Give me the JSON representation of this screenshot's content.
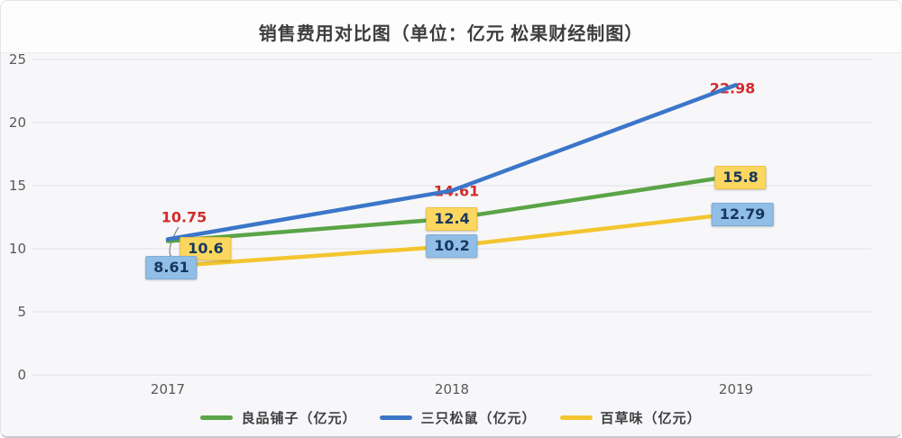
{
  "title": "销售费用对比图（单位：亿元 松果财经制图）",
  "chart_data": {
    "type": "line",
    "x_labels": [
      "2017",
      "2018",
      "2019"
    ],
    "yticks": [
      0,
      5,
      10,
      15,
      20,
      25
    ],
    "ylim": [
      0,
      25
    ],
    "grid": true,
    "legend_position": "bottom",
    "series": [
      {
        "name": "良品铺子（亿元）",
        "color": "#5ba447",
        "values": [
          10.6,
          12.4,
          15.8
        ],
        "point_labels": [
          "10.6",
          "12.4",
          "15.8"
        ],
        "label_style": "yellow-box"
      },
      {
        "name": "三只松鼠（亿元）",
        "color": "#3b76c9",
        "values": [
          10.75,
          14.61,
          22.98
        ],
        "point_labels": [
          "10.75",
          "14.61",
          "22.98"
        ],
        "label_style": "red-text"
      },
      {
        "name": "百草味（亿元）",
        "color": "#f3c52f",
        "values": [
          8.61,
          10.2,
          12.79
        ],
        "point_labels": [
          "8.61",
          "10.2",
          "12.79"
        ],
        "label_style": "blue-box"
      }
    ],
    "label_colors": {
      "yellow_box_bg": "#fcd75f",
      "yellow_box_border": "#eec244",
      "blue_box_bg": "#90bee6",
      "blue_box_border": "#7dacd6",
      "box_text": "#17375e",
      "red_text": "#d32b2b"
    },
    "axis_text_color": "#595959"
  }
}
